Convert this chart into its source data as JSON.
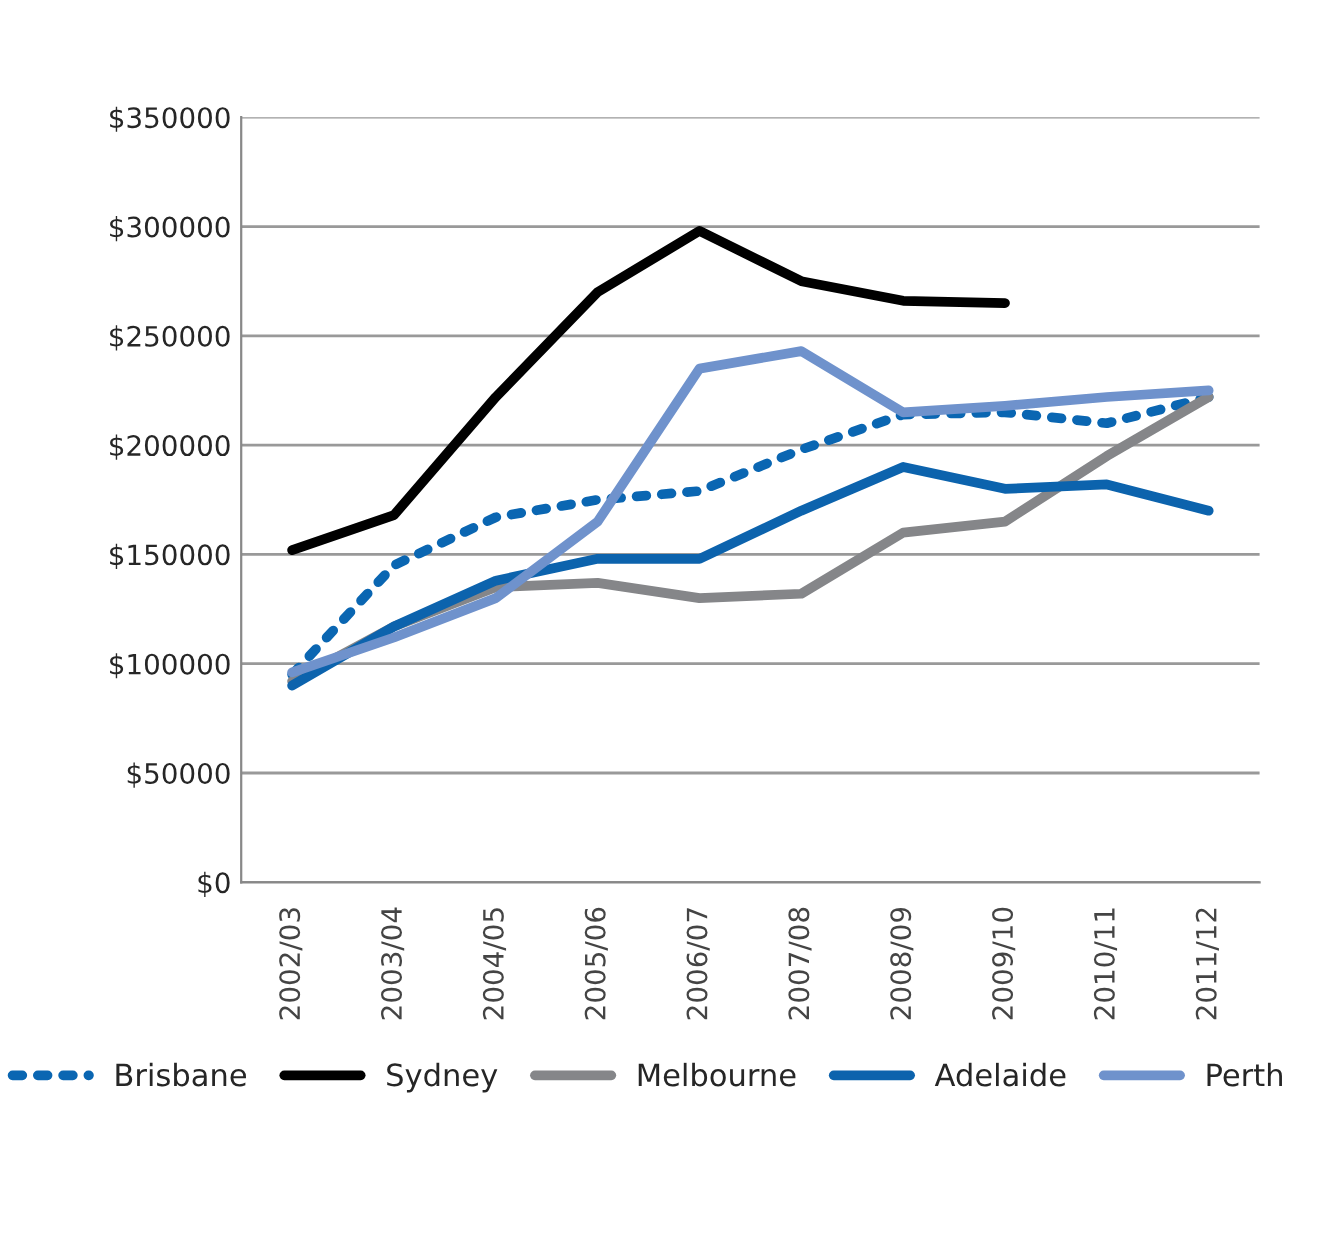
{
  "chart_data": {
    "type": "line",
    "categories": [
      "2002/03",
      "2003/04",
      "2004/05",
      "2005/06",
      "2006/07",
      "2007/08",
      "2008/09",
      "2009/10",
      "2010/11",
      "2011/12"
    ],
    "series": [
      {
        "name": "Brisbane",
        "color": "#0a66b2",
        "line_style": "dotted",
        "values": [
          95000,
          145000,
          167000,
          175000,
          179000,
          198000,
          214000,
          215000,
          210000,
          222000
        ]
      },
      {
        "name": "Sydney",
        "color": "#000000",
        "values": [
          152000,
          168000,
          222000,
          270000,
          298000,
          275000,
          266000,
          265000,
          null,
          null
        ]
      },
      {
        "name": "Melbourne",
        "color": "#858689",
        "values": [
          92000,
          117000,
          135000,
          137000,
          130000,
          132000,
          160000,
          165000,
          195000,
          222000
        ]
      },
      {
        "name": "Adelaide",
        "color": "#0c63ad",
        "values": [
          90000,
          117000,
          138000,
          148000,
          148000,
          170000,
          190000,
          180000,
          182000,
          170000
        ]
      },
      {
        "name": "Perth",
        "color": "#6f92cc",
        "values": [
          96000,
          112000,
          130000,
          165000,
          235000,
          243000,
          215000,
          218000,
          222000,
          225000
        ]
      }
    ],
    "ylim": [
      0,
      350000
    ],
    "yticks": [
      {
        "value": 0,
        "label": "$0"
      },
      {
        "value": 50000,
        "label": "$50000"
      },
      {
        "value": 100000,
        "label": "$100000"
      },
      {
        "value": 150000,
        "label": "$150000"
      },
      {
        "value": 200000,
        "label": "$200000"
      },
      {
        "value": 250000,
        "label": "$250000"
      },
      {
        "value": 300000,
        "label": "$300000"
      },
      {
        "value": 350000,
        "label": "$350000"
      }
    ],
    "grid": "y",
    "legend": "bottom",
    "line_style": "solid",
    "marker": "none"
  }
}
